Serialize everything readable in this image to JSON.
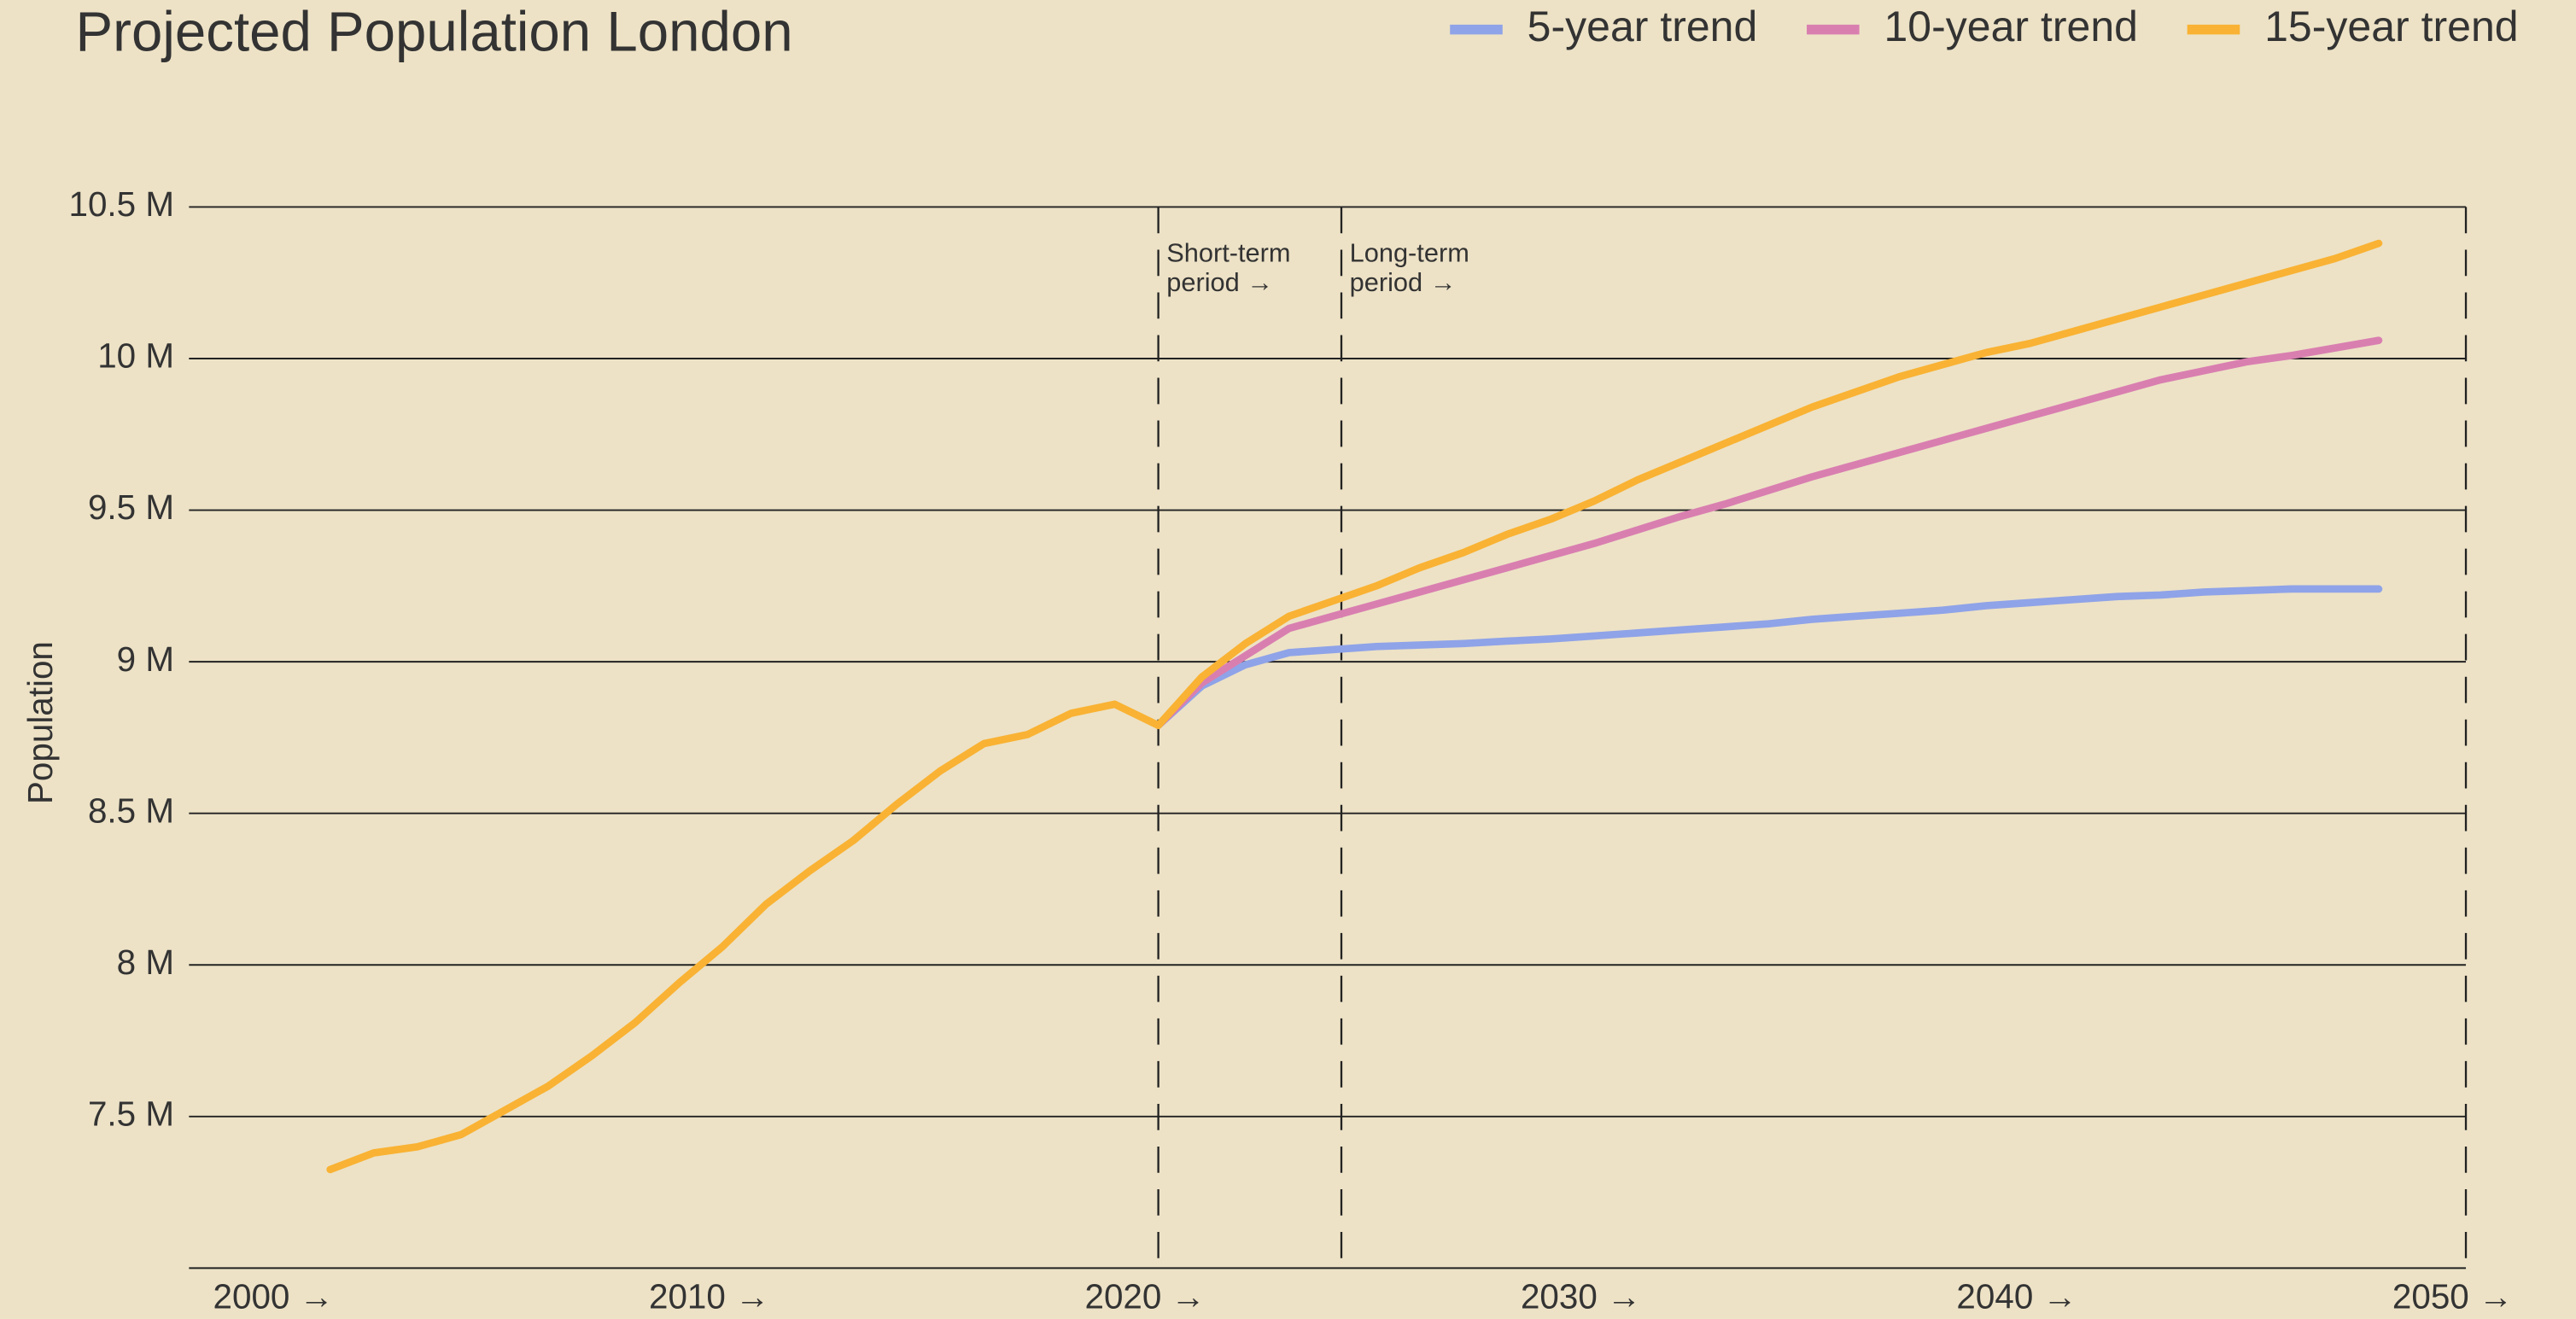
{
  "chart_data": {
    "type": "line",
    "title": "Projected Population London",
    "ylabel": "Population",
    "xlim": [
      1997.76,
      2050
    ],
    "ylim": [
      7,
      10.5
    ],
    "xticks": [
      {
        "value": 2000,
        "label": "2000 →"
      },
      {
        "value": 2010,
        "label": "2010 →"
      },
      {
        "value": 2020,
        "label": "2020 →"
      },
      {
        "value": 2030,
        "label": "2030 →"
      },
      {
        "value": 2040,
        "label": "2040 →"
      },
      {
        "value": 2050,
        "label": "2050 →"
      }
    ],
    "yticks": [
      {
        "value": 7.5,
        "label": "7.5 M"
      },
      {
        "value": 8,
        "label": "8 M"
      },
      {
        "value": 8.5,
        "label": "8.5 M"
      },
      {
        "value": 9,
        "label": "9 M"
      },
      {
        "value": 9.5,
        "label": "9.5 M"
      },
      {
        "value": 10,
        "label": "10 M"
      },
      {
        "value": 10.5,
        "label": "10.5 M"
      }
    ],
    "grid": true,
    "legend": "top-right",
    "periods": [
      {
        "start": 2020,
        "label": [
          "Short-term",
          "period →"
        ]
      },
      {
        "start": 2024.2,
        "label": [
          "Long-term",
          "period →"
        ]
      }
    ],
    "series": [
      {
        "name": "5-year trend",
        "color": "#8fa3e8",
        "x": [
          2020,
          2021,
          2022,
          2023,
          2024,
          2025,
          2026,
          2027,
          2028,
          2029,
          2030,
          2031,
          2032,
          2033,
          2034,
          2035,
          2036,
          2037,
          2038,
          2039,
          2040,
          2041,
          2042,
          2043,
          2044,
          2045,
          2046,
          2047,
          2048
        ],
        "values": [
          8.79,
          8.92,
          8.99,
          9.03,
          9.04,
          9.05,
          9.055,
          9.06,
          9.068,
          9.075,
          9.085,
          9.095,
          9.105,
          9.115,
          9.125,
          9.14,
          9.15,
          9.16,
          9.17,
          9.185,
          9.195,
          9.205,
          9.215,
          9.22,
          9.23,
          9.235,
          9.24,
          9.24,
          9.24
        ]
      },
      {
        "name": "10-year trend",
        "color": "#d97fb0",
        "x": [
          2020,
          2021,
          2022,
          2023,
          2024,
          2025,
          2026,
          2027,
          2028,
          2029,
          2030,
          2031,
          2032,
          2033,
          2034,
          2035,
          2036,
          2037,
          2038,
          2039,
          2040,
          2041,
          2042,
          2043,
          2044,
          2045,
          2046,
          2047,
          2048
        ],
        "values": [
          8.79,
          8.93,
          9.02,
          9.11,
          9.15,
          9.19,
          9.23,
          9.27,
          9.31,
          9.35,
          9.39,
          9.435,
          9.48,
          9.52,
          9.565,
          9.61,
          9.65,
          9.69,
          9.73,
          9.77,
          9.81,
          9.85,
          9.89,
          9.93,
          9.96,
          9.99,
          10.01,
          10.035,
          10.06
        ]
      },
      {
        "name": "15-year trend",
        "color": "#f9b233",
        "x": [
          2001,
          2002,
          2003,
          2004,
          2005,
          2006,
          2007,
          2008,
          2009,
          2010,
          2011,
          2012,
          2013,
          2014,
          2015,
          2016,
          2017,
          2018,
          2019,
          2020,
          2021,
          2022,
          2023,
          2024,
          2025,
          2026,
          2027,
          2028,
          2029,
          2030,
          2031,
          2032,
          2033,
          2034,
          2035,
          2036,
          2037,
          2038,
          2039,
          2040,
          2041,
          2042,
          2043,
          2044,
          2045,
          2046,
          2047,
          2048
        ],
        "values": [
          7.325,
          7.38,
          7.4,
          7.44,
          7.52,
          7.6,
          7.7,
          7.81,
          7.94,
          8.06,
          8.2,
          8.31,
          8.41,
          8.53,
          8.64,
          8.73,
          8.76,
          8.83,
          8.86,
          8.79,
          8.95,
          9.06,
          9.15,
          9.2,
          9.25,
          9.31,
          9.36,
          9.42,
          9.47,
          9.53,
          9.6,
          9.66,
          9.72,
          9.78,
          9.84,
          9.89,
          9.94,
          9.98,
          10.02,
          10.05,
          10.09,
          10.13,
          10.17,
          10.21,
          10.25,
          10.29,
          10.33,
          10.38
        ]
      }
    ]
  }
}
